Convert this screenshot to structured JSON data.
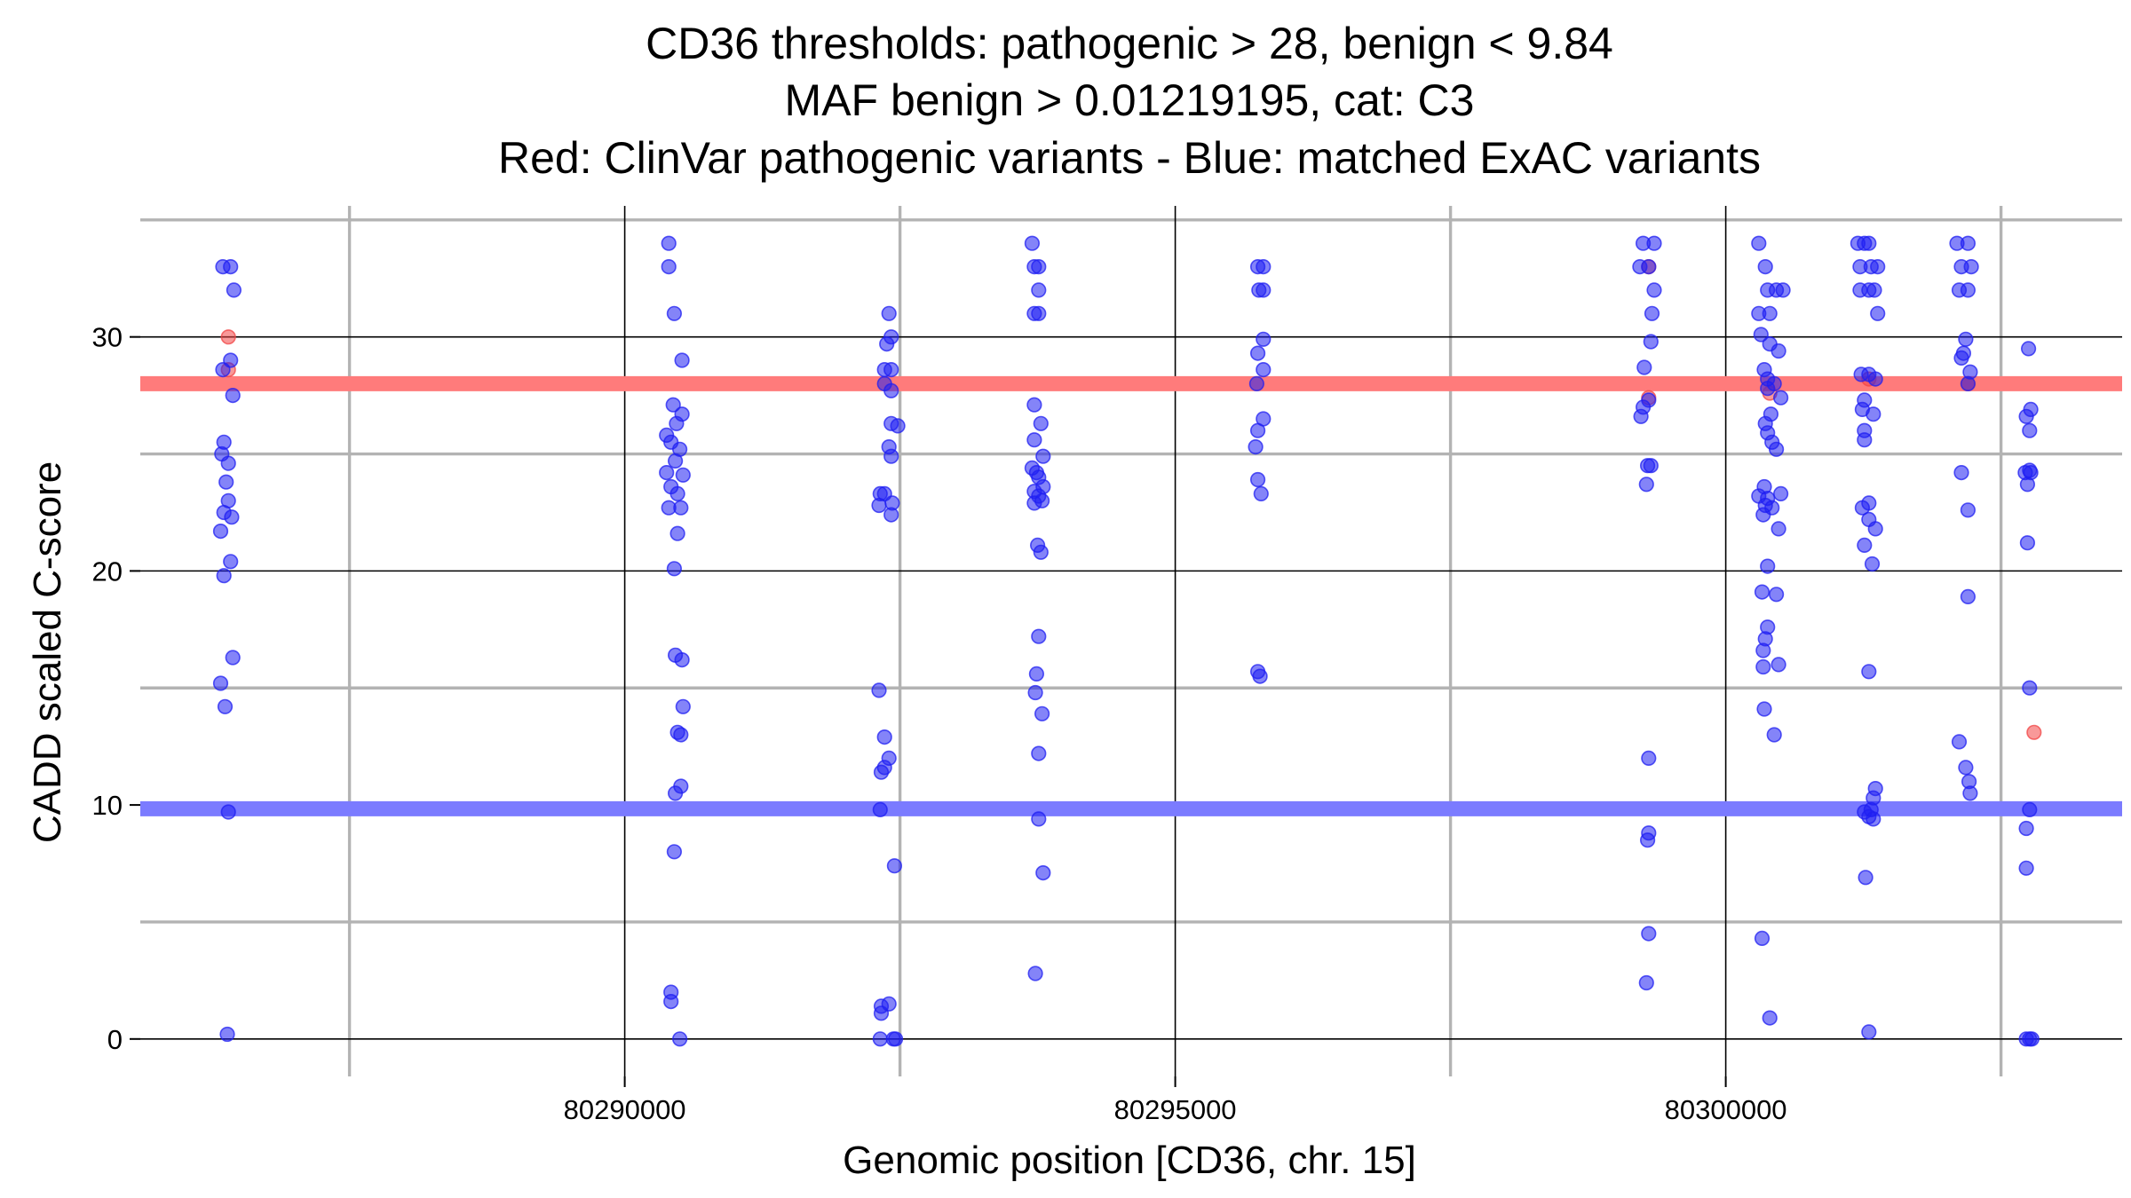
{
  "chart_data": {
    "type": "scatter",
    "title_lines": [
      "CD36 thresholds: pathogenic > 28, benign < 9.84",
      "MAF benign > 0.01219195, cat: C3",
      "Red: ClinVar pathogenic variants - Blue: matched ExAC variants"
    ],
    "xlabel": "Genomic position [CD36, chr. 15]",
    "ylabel": "CADD scaled C-score",
    "xlim": [
      80285600,
      80303600
    ],
    "ylim": [
      -1.6,
      35.6
    ],
    "x_ticks": [
      80290000,
      80295000,
      80300000
    ],
    "x_minor_ticks": [
      80287500,
      80292500,
      80297500,
      80302500
    ],
    "y_ticks": [
      0,
      10,
      20,
      30
    ],
    "y_minor_ticks": [
      5,
      15,
      25,
      35
    ],
    "grid": true,
    "colors": {
      "pathogenic": "#f24646",
      "benign": "#1f1ff2",
      "pathogenic_line": "#ff7b7b",
      "benign_line": "#7b7bff",
      "major_grid": "#000000",
      "minor_grid": "#b3b3b3"
    },
    "thresholds": {
      "pathogenic": 28,
      "benign": 9.84
    },
    "series": [
      {
        "key": "pathogenic",
        "points": [
          [
            80286400,
            30
          ],
          [
            80286400,
            28.6
          ],
          [
            80299300,
            33
          ],
          [
            80299300,
            27.4
          ],
          [
            80300400,
            27.6
          ],
          [
            80301300,
            28.2
          ],
          [
            80302200,
            28
          ],
          [
            80302800,
            13.1
          ]
        ]
      },
      {
        "key": "benign",
        "points": [
          [
            80286350,
            33
          ],
          [
            80286420,
            33
          ],
          [
            80286450,
            32
          ],
          [
            80286350,
            28.6
          ],
          [
            80286420,
            29
          ],
          [
            80286440,
            27.5
          ],
          [
            80286360,
            25.5
          ],
          [
            80286340,
            25
          ],
          [
            80286400,
            24.6
          ],
          [
            80286380,
            23.8
          ],
          [
            80286400,
            23
          ],
          [
            80286360,
            22.5
          ],
          [
            80286430,
            22.3
          ],
          [
            80286330,
            21.7
          ],
          [
            80286420,
            20.4
          ],
          [
            80286360,
            19.8
          ],
          [
            80286440,
            16.3
          ],
          [
            80286330,
            15.2
          ],
          [
            80286370,
            14.2
          ],
          [
            80286400,
            9.7
          ],
          [
            80286390,
            0.2
          ],
          [
            80290400,
            34
          ],
          [
            80290400,
            33
          ],
          [
            80290450,
            31
          ],
          [
            80290520,
            29
          ],
          [
            80290440,
            27.1
          ],
          [
            80290520,
            26.7
          ],
          [
            80290470,
            26.3
          ],
          [
            80290380,
            25.8
          ],
          [
            80290420,
            25.5
          ],
          [
            80290500,
            25.2
          ],
          [
            80290460,
            24.7
          ],
          [
            80290380,
            24.2
          ],
          [
            80290530,
            24.1
          ],
          [
            80290420,
            23.6
          ],
          [
            80290480,
            23.3
          ],
          [
            80290400,
            22.7
          ],
          [
            80290510,
            22.7
          ],
          [
            80290480,
            21.6
          ],
          [
            80290450,
            20.1
          ],
          [
            80290460,
            16.4
          ],
          [
            80290520,
            16.2
          ],
          [
            80290530,
            14.2
          ],
          [
            80290480,
            13.1
          ],
          [
            80290510,
            13
          ],
          [
            80290510,
            10.8
          ],
          [
            80290460,
            10.5
          ],
          [
            80290450,
            8
          ],
          [
            80290420,
            2
          ],
          [
            80290420,
            1.6
          ],
          [
            80290500,
            0
          ],
          [
            80292400,
            31
          ],
          [
            80292420,
            30
          ],
          [
            80292380,
            29.7
          ],
          [
            80292360,
            28.6
          ],
          [
            80292420,
            28.6
          ],
          [
            80292360,
            28
          ],
          [
            80292420,
            27.7
          ],
          [
            80292420,
            26.3
          ],
          [
            80292480,
            26.2
          ],
          [
            80292400,
            25.3
          ],
          [
            80292420,
            24.9
          ],
          [
            80292320,
            23.3
          ],
          [
            80292360,
            23.3
          ],
          [
            80292430,
            22.9
          ],
          [
            80292310,
            22.8
          ],
          [
            80292420,
            22.4
          ],
          [
            80292310,
            14.9
          ],
          [
            80292360,
            12.9
          ],
          [
            80292400,
            12
          ],
          [
            80292360,
            11.6
          ],
          [
            80292330,
            11.4
          ],
          [
            80292320,
            9.8
          ],
          [
            80292450,
            7.4
          ],
          [
            80292330,
            1.4
          ],
          [
            80292330,
            1.1
          ],
          [
            80292400,
            1.5
          ],
          [
            80292320,
            0
          ],
          [
            80292440,
            0
          ],
          [
            80292460,
            0
          ],
          [
            80293700,
            34
          ],
          [
            80293720,
            33
          ],
          [
            80293760,
            33
          ],
          [
            80293760,
            32
          ],
          [
            80293720,
            31
          ],
          [
            80293760,
            31
          ],
          [
            80293720,
            27.1
          ],
          [
            80293780,
            26.3
          ],
          [
            80293720,
            25.6
          ],
          [
            80293800,
            24.9
          ],
          [
            80293700,
            24.4
          ],
          [
            80293740,
            24.2
          ],
          [
            80293760,
            24
          ],
          [
            80293800,
            23.6
          ],
          [
            80293720,
            23.4
          ],
          [
            80293760,
            23.2
          ],
          [
            80293720,
            22.9
          ],
          [
            80293790,
            23
          ],
          [
            80293750,
            21.1
          ],
          [
            80293780,
            20.8
          ],
          [
            80293760,
            17.2
          ],
          [
            80293740,
            15.6
          ],
          [
            80293730,
            14.8
          ],
          [
            80293790,
            13.9
          ],
          [
            80293760,
            12.2
          ],
          [
            80293760,
            9.4
          ],
          [
            80293800,
            7.1
          ],
          [
            80293730,
            2.8
          ],
          [
            80295750,
            33
          ],
          [
            80295800,
            33
          ],
          [
            80295760,
            32
          ],
          [
            80295800,
            32
          ],
          [
            80295800,
            29.9
          ],
          [
            80295750,
            29.3
          ],
          [
            80295800,
            28.6
          ],
          [
            80295740,
            28
          ],
          [
            80295800,
            26.5
          ],
          [
            80295750,
            26
          ],
          [
            80295730,
            25.3
          ],
          [
            80295750,
            23.9
          ],
          [
            80295780,
            23.3
          ],
          [
            80295750,
            15.7
          ],
          [
            80295770,
            15.5
          ],
          [
            80299250,
            34
          ],
          [
            80299350,
            34
          ],
          [
            80299220,
            33
          ],
          [
            80299300,
            33
          ],
          [
            80299350,
            32
          ],
          [
            80299330,
            31
          ],
          [
            80299320,
            29.8
          ],
          [
            80299260,
            28.7
          ],
          [
            80299300,
            27.3
          ],
          [
            80299250,
            27
          ],
          [
            80299230,
            26.6
          ],
          [
            80299290,
            24.5
          ],
          [
            80299320,
            24.5
          ],
          [
            80299280,
            23.7
          ],
          [
            80299300,
            12
          ],
          [
            80299300,
            8.8
          ],
          [
            80299290,
            8.5
          ],
          [
            80299300,
            4.5
          ],
          [
            80299280,
            2.4
          ],
          [
            80300300,
            34
          ],
          [
            80300360,
            33
          ],
          [
            80300380,
            32
          ],
          [
            80300460,
            32
          ],
          [
            80300520,
            32
          ],
          [
            80300300,
            31
          ],
          [
            80300400,
            31
          ],
          [
            80300320,
            30.1
          ],
          [
            80300400,
            29.7
          ],
          [
            80300480,
            29.4
          ],
          [
            80300350,
            28.6
          ],
          [
            80300380,
            28.2
          ],
          [
            80300440,
            28
          ],
          [
            80300380,
            27.8
          ],
          [
            80300500,
            27.4
          ],
          [
            80300410,
            26.7
          ],
          [
            80300360,
            26.3
          ],
          [
            80300380,
            25.9
          ],
          [
            80300420,
            25.5
          ],
          [
            80300460,
            25.2
          ],
          [
            80300350,
            23.6
          ],
          [
            80300300,
            23.2
          ],
          [
            80300500,
            23.3
          ],
          [
            80300380,
            23.1
          ],
          [
            80300360,
            22.8
          ],
          [
            80300420,
            22.7
          ],
          [
            80300340,
            22.4
          ],
          [
            80300480,
            21.8
          ],
          [
            80300380,
            20.2
          ],
          [
            80300330,
            19.1
          ],
          [
            80300460,
            19
          ],
          [
            80300380,
            17.6
          ],
          [
            80300360,
            17.1
          ],
          [
            80300340,
            16.6
          ],
          [
            80300340,
            15.9
          ],
          [
            80300480,
            16
          ],
          [
            80300350,
            14.1
          ],
          [
            80300440,
            13
          ],
          [
            80300330,
            4.3
          ],
          [
            80300400,
            0.9
          ],
          [
            80301200,
            34
          ],
          [
            80301260,
            34
          ],
          [
            80301300,
            34
          ],
          [
            80301220,
            33
          ],
          [
            80301320,
            33
          ],
          [
            80301380,
            33
          ],
          [
            80301220,
            32
          ],
          [
            80301300,
            32
          ],
          [
            80301350,
            32
          ],
          [
            80301380,
            31
          ],
          [
            80301230,
            28.4
          ],
          [
            80301300,
            28.4
          ],
          [
            80301360,
            28.2
          ],
          [
            80301260,
            27.3
          ],
          [
            80301240,
            26.9
          ],
          [
            80301340,
            26.7
          ],
          [
            80301260,
            26
          ],
          [
            80301260,
            25.6
          ],
          [
            80301300,
            22.9
          ],
          [
            80301240,
            22.7
          ],
          [
            80301300,
            22.2
          ],
          [
            80301360,
            21.8
          ],
          [
            80301260,
            21.1
          ],
          [
            80301330,
            20.3
          ],
          [
            80301300,
            15.7
          ],
          [
            80301360,
            10.7
          ],
          [
            80301340,
            10.3
          ],
          [
            80301320,
            9.8
          ],
          [
            80301260,
            9.7
          ],
          [
            80301300,
            9.5
          ],
          [
            80301340,
            9.4
          ],
          [
            80301270,
            6.9
          ],
          [
            80301300,
            0.3
          ],
          [
            80302100,
            34
          ],
          [
            80302200,
            34
          ],
          [
            80302140,
            33
          ],
          [
            80302230,
            33
          ],
          [
            80302120,
            32
          ],
          [
            80302200,
            32
          ],
          [
            80302180,
            29.9
          ],
          [
            80302160,
            29.3
          ],
          [
            80302140,
            29.1
          ],
          [
            80302220,
            28.5
          ],
          [
            80302200,
            28
          ],
          [
            80302140,
            24.2
          ],
          [
            80302200,
            22.6
          ],
          [
            80302200,
            18.9
          ],
          [
            80302120,
            12.7
          ],
          [
            80302180,
            11.6
          ],
          [
            80302210,
            11
          ],
          [
            80302220,
            10.5
          ],
          [
            80302750,
            29.5
          ],
          [
            80302770,
            26.9
          ],
          [
            80302730,
            26.6
          ],
          [
            80302760,
            26
          ],
          [
            80302760,
            24.3
          ],
          [
            80302720,
            24.2
          ],
          [
            80302770,
            24.2
          ],
          [
            80302740,
            23.7
          ],
          [
            80302740,
            21.2
          ],
          [
            80302760,
            15
          ],
          [
            80302760,
            9.8
          ],
          [
            80302730,
            9
          ],
          [
            80302730,
            7.3
          ],
          [
            80302730,
            0
          ],
          [
            80302760,
            0
          ],
          [
            80302780,
            0
          ]
        ]
      }
    ]
  }
}
